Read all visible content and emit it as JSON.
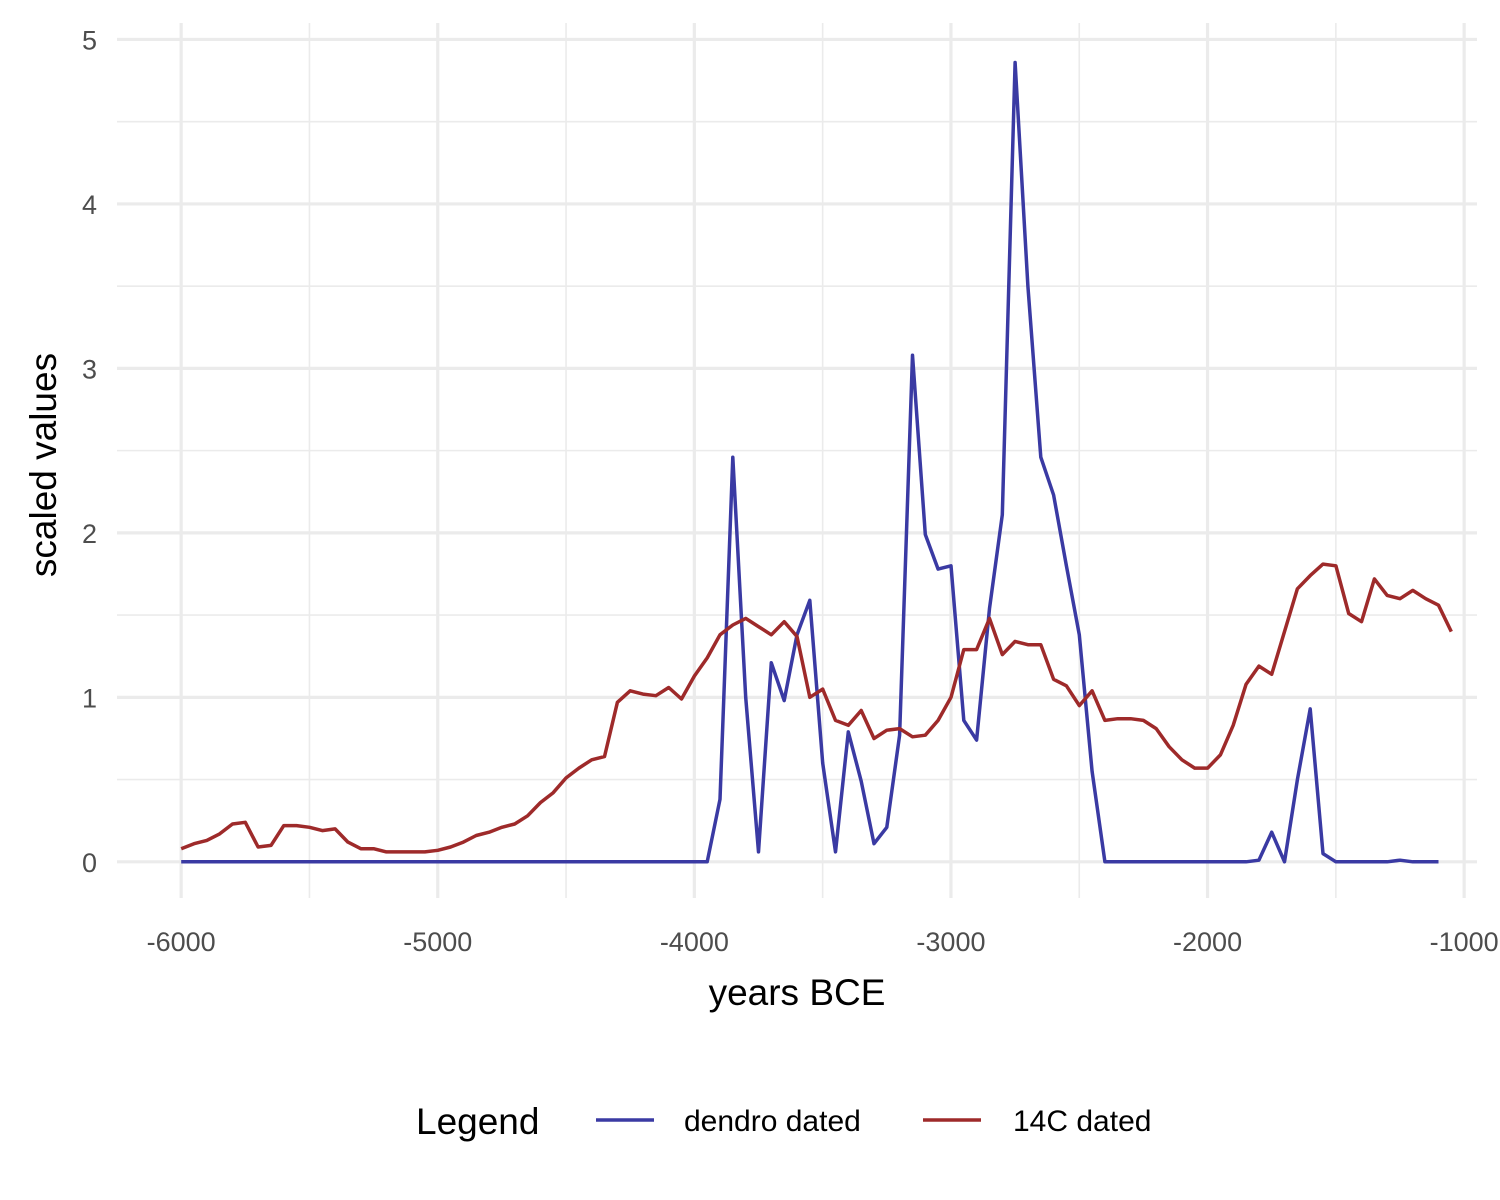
{
  "chart_data": {
    "type": "line",
    "xlabel": "years BCE",
    "ylabel": "scaled values",
    "xlim": [
      -6250,
      -950
    ],
    "ylim": [
      -0.22,
      5.1
    ],
    "x_ticks": [
      -6000,
      -5000,
      -4000,
      -3000,
      -2000,
      -1000
    ],
    "y_ticks": [
      0,
      1,
      2,
      3,
      4,
      5
    ],
    "grid": true,
    "legend": {
      "title": "Legend",
      "placement": "bottom"
    },
    "series": [
      {
        "name": "dendro dated",
        "color": "#3a3aa3",
        "points": [
          [
            -6000,
            0
          ],
          [
            -5500,
            0
          ],
          [
            -5000,
            0
          ],
          [
            -4500,
            0
          ],
          [
            -3950,
            0
          ],
          [
            -3900,
            0.38
          ],
          [
            -3850,
            2.46
          ],
          [
            -3800,
            1.0
          ],
          [
            -3750,
            0.06
          ],
          [
            -3700,
            1.21
          ],
          [
            -3650,
            0.98
          ],
          [
            -3600,
            1.38
          ],
          [
            -3550,
            1.59
          ],
          [
            -3500,
            0.6
          ],
          [
            -3450,
            0.06
          ],
          [
            -3400,
            0.79
          ],
          [
            -3350,
            0.49
          ],
          [
            -3300,
            0.11
          ],
          [
            -3250,
            0.21
          ],
          [
            -3200,
            0.77
          ],
          [
            -3150,
            3.08
          ],
          [
            -3100,
            1.99
          ],
          [
            -3050,
            1.78
          ],
          [
            -3000,
            1.8
          ],
          [
            -2950,
            0.86
          ],
          [
            -2900,
            0.74
          ],
          [
            -2850,
            1.54
          ],
          [
            -2800,
            2.11
          ],
          [
            -2750,
            4.86
          ],
          [
            -2700,
            3.5
          ],
          [
            -2650,
            2.46
          ],
          [
            -2600,
            2.23
          ],
          [
            -2550,
            1.8
          ],
          [
            -2500,
            1.38
          ],
          [
            -2450,
            0.55
          ],
          [
            -2400,
            0
          ],
          [
            -2000,
            0
          ],
          [
            -1850,
            0
          ],
          [
            -1800,
            0.01
          ],
          [
            -1750,
            0.18
          ],
          [
            -1700,
            0
          ],
          [
            -1650,
            0.5
          ],
          [
            -1600,
            0.93
          ],
          [
            -1550,
            0.05
          ],
          [
            -1500,
            0
          ],
          [
            -1300,
            0
          ],
          [
            -1250,
            0.01
          ],
          [
            -1200,
            0
          ],
          [
            -1100,
            0
          ]
        ]
      },
      {
        "name": "14C dated",
        "color": "#9e2a2a",
        "points": [
          [
            -6000,
            0.08
          ],
          [
            -5950,
            0.11
          ],
          [
            -5900,
            0.13
          ],
          [
            -5850,
            0.17
          ],
          [
            -5800,
            0.23
          ],
          [
            -5750,
            0.24
          ],
          [
            -5700,
            0.09
          ],
          [
            -5650,
            0.1
          ],
          [
            -5600,
            0.22
          ],
          [
            -5550,
            0.22
          ],
          [
            -5500,
            0.21
          ],
          [
            -5450,
            0.19
          ],
          [
            -5400,
            0.2
          ],
          [
            -5350,
            0.12
          ],
          [
            -5300,
            0.08
          ],
          [
            -5250,
            0.08
          ],
          [
            -5200,
            0.06
          ],
          [
            -5150,
            0.06
          ],
          [
            -5100,
            0.06
          ],
          [
            -5050,
            0.06
          ],
          [
            -5000,
            0.07
          ],
          [
            -4950,
            0.09
          ],
          [
            -4900,
            0.12
          ],
          [
            -4850,
            0.16
          ],
          [
            -4800,
            0.18
          ],
          [
            -4750,
            0.21
          ],
          [
            -4700,
            0.23
          ],
          [
            -4650,
            0.28
          ],
          [
            -4600,
            0.36
          ],
          [
            -4550,
            0.42
          ],
          [
            -4500,
            0.51
          ],
          [
            -4450,
            0.57
          ],
          [
            -4400,
            0.62
          ],
          [
            -4350,
            0.64
          ],
          [
            -4300,
            0.97
          ],
          [
            -4250,
            1.04
          ],
          [
            -4200,
            1.02
          ],
          [
            -4150,
            1.01
          ],
          [
            -4100,
            1.06
          ],
          [
            -4050,
            0.99
          ],
          [
            -4000,
            1.13
          ],
          [
            -3950,
            1.24
          ],
          [
            -3900,
            1.38
          ],
          [
            -3850,
            1.44
          ],
          [
            -3800,
            1.48
          ],
          [
            -3750,
            1.43
          ],
          [
            -3700,
            1.38
          ],
          [
            -3650,
            1.46
          ],
          [
            -3600,
            1.37
          ],
          [
            -3550,
            1.0
          ],
          [
            -3500,
            1.05
          ],
          [
            -3450,
            0.86
          ],
          [
            -3400,
            0.83
          ],
          [
            -3350,
            0.92
          ],
          [
            -3300,
            0.75
          ],
          [
            -3250,
            0.8
          ],
          [
            -3200,
            0.81
          ],
          [
            -3150,
            0.76
          ],
          [
            -3100,
            0.77
          ],
          [
            -3050,
            0.86
          ],
          [
            -3000,
            1.0
          ],
          [
            -2950,
            1.29
          ],
          [
            -2900,
            1.29
          ],
          [
            -2850,
            1.48
          ],
          [
            -2800,
            1.26
          ],
          [
            -2750,
            1.34
          ],
          [
            -2700,
            1.32
          ],
          [
            -2650,
            1.32
          ],
          [
            -2600,
            1.11
          ],
          [
            -2550,
            1.07
          ],
          [
            -2500,
            0.95
          ],
          [
            -2450,
            1.04
          ],
          [
            -2400,
            0.86
          ],
          [
            -2350,
            0.87
          ],
          [
            -2300,
            0.87
          ],
          [
            -2250,
            0.86
          ],
          [
            -2200,
            0.81
          ],
          [
            -2150,
            0.7
          ],
          [
            -2100,
            0.62
          ],
          [
            -2050,
            0.57
          ],
          [
            -2000,
            0.57
          ],
          [
            -1950,
            0.65
          ],
          [
            -1900,
            0.83
          ],
          [
            -1850,
            1.08
          ],
          [
            -1800,
            1.19
          ],
          [
            -1750,
            1.14
          ],
          [
            -1700,
            1.4
          ],
          [
            -1650,
            1.66
          ],
          [
            -1600,
            1.74
          ],
          [
            -1550,
            1.81
          ],
          [
            -1500,
            1.8
          ],
          [
            -1450,
            1.51
          ],
          [
            -1400,
            1.46
          ],
          [
            -1350,
            1.72
          ],
          [
            -1300,
            1.62
          ],
          [
            -1250,
            1.6
          ],
          [
            -1200,
            1.65
          ],
          [
            -1150,
            1.6
          ],
          [
            -1100,
            1.56
          ],
          [
            -1050,
            1.4
          ]
        ]
      }
    ]
  }
}
